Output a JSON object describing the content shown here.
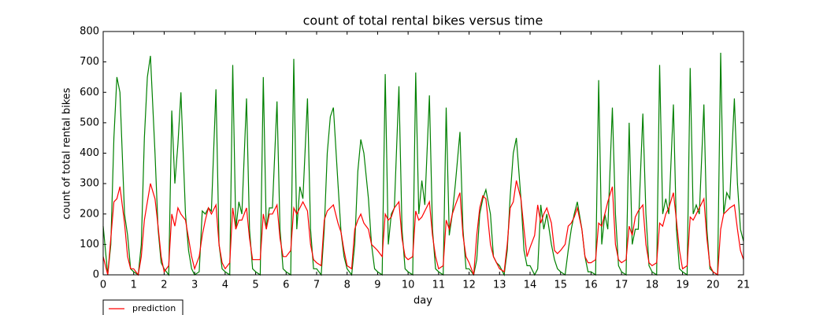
{
  "chart_data": {
    "type": "line",
    "title": "count of total rental bikes versus time",
    "xlabel": "day",
    "ylabel": "count of total rental bikes",
    "x": [
      0,
      0.15,
      0.25,
      0.35,
      0.45,
      0.55,
      0.7,
      0.8,
      0.9,
      1,
      1.15,
      1.25,
      1.35,
      1.45,
      1.55,
      1.7,
      1.8,
      1.9,
      2,
      2.15,
      2.25,
      2.35,
      2.45,
      2.55,
      2.7,
      2.8,
      2.9,
      3,
      3.15,
      3.25,
      3.35,
      3.45,
      3.55,
      3.7,
      3.8,
      3.9,
      4,
      4.15,
      4.25,
      4.35,
      4.45,
      4.55,
      4.7,
      4.8,
      4.9,
      5,
      5.15,
      5.25,
      5.35,
      5.45,
      5.55,
      5.7,
      5.8,
      5.9,
      6,
      6.15,
      6.25,
      6.35,
      6.45,
      6.55,
      6.7,
      6.8,
      6.9,
      7,
      7.15,
      7.25,
      7.35,
      7.45,
      7.55,
      7.7,
      7.8,
      7.9,
      8,
      8.15,
      8.25,
      8.35,
      8.45,
      8.55,
      8.7,
      8.8,
      8.9,
      9,
      9.15,
      9.25,
      9.35,
      9.45,
      9.55,
      9.7,
      9.8,
      9.9,
      10,
      10.15,
      10.25,
      10.35,
      10.45,
      10.55,
      10.7,
      10.8,
      10.9,
      11,
      11.15,
      11.25,
      11.35,
      11.45,
      11.55,
      11.7,
      11.8,
      11.9,
      12,
      12.15,
      12.25,
      12.35,
      12.45,
      12.55,
      12.7,
      12.8,
      12.9,
      13,
      13.15,
      13.25,
      13.35,
      13.45,
      13.55,
      13.7,
      13.8,
      13.9,
      14,
      14.15,
      14.25,
      14.35,
      14.45,
      14.55,
      14.7,
      14.8,
      14.9,
      15,
      15.15,
      15.25,
      15.35,
      15.45,
      15.55,
      15.7,
      15.8,
      15.9,
      16,
      16.15,
      16.25,
      16.35,
      16.45,
      16.55,
      16.7,
      16.8,
      16.9,
      17,
      17.15,
      17.25,
      17.35,
      17.45,
      17.55,
      17.7,
      17.8,
      17.9,
      18,
      18.15,
      18.25,
      18.35,
      18.45,
      18.55,
      18.7,
      18.8,
      18.9,
      19,
      19.15,
      19.25,
      19.35,
      19.45,
      19.55,
      19.7,
      19.8,
      19.9,
      20,
      20.15,
      20.25,
      20.35,
      20.45,
      20.55,
      20.7,
      20.8,
      20.9,
      21
    ],
    "series": [
      {
        "name": "prediction",
        "color": "#ff0000",
        "values": [
          60,
          0,
          120,
          240,
          250,
          290,
          170,
          60,
          20,
          20,
          0,
          60,
          180,
          240,
          300,
          250,
          160,
          60,
          10,
          30,
          200,
          160,
          220,
          200,
          180,
          120,
          60,
          20,
          60,
          130,
          180,
          220,
          200,
          230,
          100,
          40,
          20,
          40,
          220,
          150,
          180,
          180,
          220,
          120,
          50,
          50,
          50,
          200,
          150,
          200,
          200,
          230,
          120,
          60,
          60,
          80,
          220,
          200,
          220,
          240,
          210,
          100,
          50,
          40,
          30,
          180,
          210,
          220,
          230,
          170,
          140,
          80,
          30,
          20,
          150,
          180,
          200,
          170,
          150,
          100,
          90,
          80,
          60,
          200,
          180,
          190,
          220,
          240,
          120,
          60,
          50,
          60,
          210,
          180,
          190,
          210,
          240,
          130,
          60,
          20,
          30,
          180,
          150,
          200,
          230,
          270,
          130,
          60,
          40,
          0,
          130,
          220,
          260,
          250,
          100,
          60,
          40,
          20,
          10,
          100,
          220,
          240,
          310,
          250,
          150,
          60,
          90,
          130,
          230,
          170,
          200,
          220,
          170,
          80,
          70,
          80,
          100,
          160,
          170,
          190,
          220,
          150,
          60,
          40,
          40,
          50,
          170,
          160,
          200,
          240,
          290,
          100,
          50,
          40,
          50,
          160,
          130,
          190,
          210,
          230,
          100,
          40,
          30,
          40,
          170,
          160,
          200,
          220,
          270,
          180,
          80,
          20,
          30,
          190,
          180,
          200,
          220,
          250,
          120,
          30,
          10,
          0,
          150,
          200,
          210,
          220,
          230,
          150,
          80,
          50
        ]
      },
      {
        "color": "#008000",
        "values": [
          160,
          0,
          100,
          450,
          650,
          600,
          200,
          130,
          20,
          10,
          0,
          100,
          450,
          650,
          720,
          400,
          150,
          40,
          20,
          0,
          540,
          300,
          430,
          600,
          200,
          80,
          20,
          0,
          10,
          210,
          200,
          220,
          210,
          610,
          100,
          20,
          10,
          0,
          690,
          150,
          240,
          200,
          580,
          150,
          20,
          10,
          0,
          650,
          150,
          220,
          220,
          570,
          150,
          20,
          10,
          0,
          710,
          150,
          290,
          250,
          580,
          150,
          20,
          20,
          0,
          150,
          400,
          520,
          550,
          300,
          140,
          60,
          20,
          0,
          100,
          340,
          445,
          400,
          250,
          100,
          20,
          10,
          0,
          660,
          100,
          200,
          220,
          620,
          150,
          20,
          10,
          0,
          665,
          200,
          310,
          230,
          590,
          150,
          20,
          10,
          0,
          550,
          130,
          200,
          300,
          470,
          150,
          20,
          20,
          0,
          50,
          200,
          250,
          280,
          200,
          60,
          40,
          30,
          0,
          80,
          260,
          400,
          450,
          250,
          80,
          30,
          30,
          0,
          20,
          230,
          150,
          200,
          100,
          50,
          20,
          10,
          0,
          80,
          150,
          200,
          240,
          150,
          60,
          10,
          10,
          0,
          640,
          100,
          200,
          150,
          550,
          200,
          30,
          10,
          0,
          500,
          100,
          150,
          150,
          530,
          200,
          30,
          10,
          0,
          690,
          200,
          250,
          200,
          560,
          150,
          20,
          10,
          0,
          680,
          200,
          230,
          200,
          560,
          150,
          20,
          10,
          0,
          730,
          200,
          270,
          250,
          580,
          300,
          150,
          110
        ]
      }
    ],
    "xlim": [
      0,
      21
    ],
    "xticks": [
      0,
      1,
      2,
      3,
      4,
      5,
      6,
      7,
      8,
      9,
      10,
      11,
      12,
      13,
      14,
      15,
      16,
      17,
      18,
      19,
      20,
      21
    ],
    "ylim": [
      0,
      800
    ],
    "yticks": [
      0,
      100,
      200,
      300,
      400,
      500,
      600,
      700,
      800
    ],
    "grid": false,
    "legend": "below-left"
  }
}
